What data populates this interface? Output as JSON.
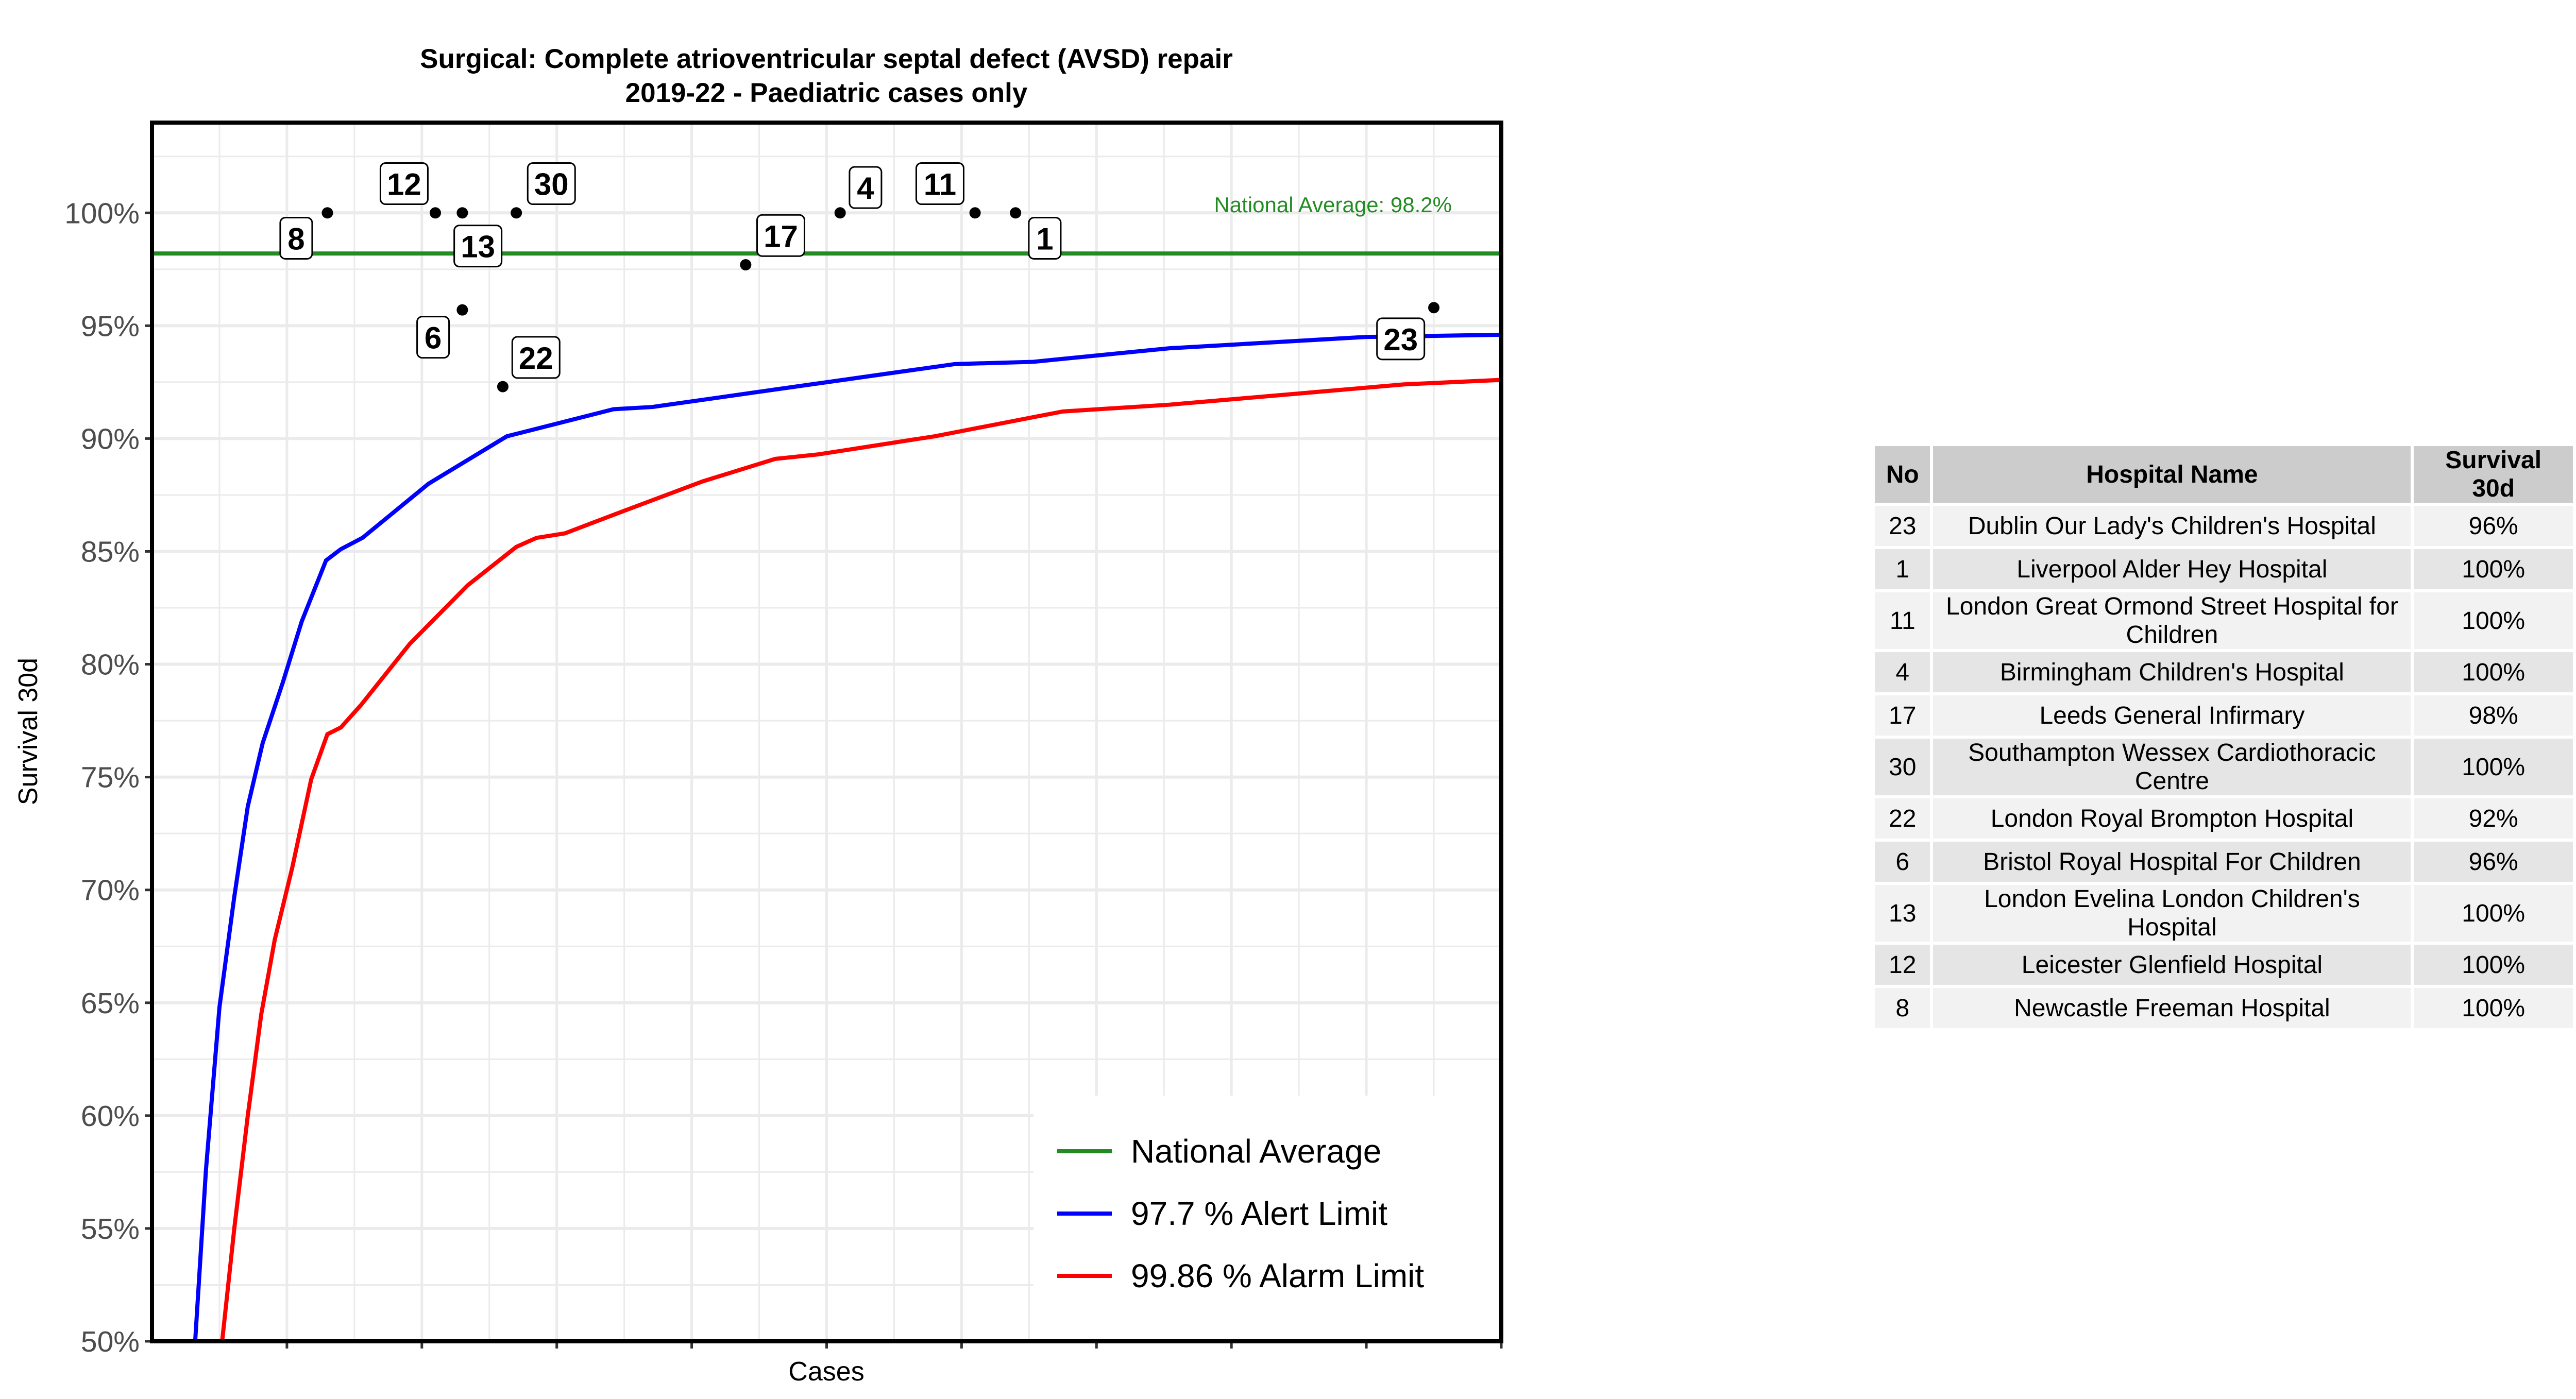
{
  "chart_data": {
    "type": "scatter",
    "title": "Surgical: Complete atrioventricular septal defect (AVSD) repair",
    "subtitle": "2019-22 - Paediatric cases only",
    "xlabel": "Cases",
    "ylabel": "Survival 30d",
    "xlim": [
      0,
      100
    ],
    "ylim": [
      50,
      104
    ],
    "x_tick_labels_shown": false,
    "y_ticks": [
      50,
      55,
      60,
      65,
      70,
      75,
      80,
      85,
      90,
      95,
      100
    ],
    "y_tick_labels": [
      "50%",
      "55%",
      "60%",
      "65%",
      "70%",
      "75%",
      "80%",
      "85%",
      "90%",
      "95%",
      "100%"
    ],
    "grid": true,
    "points": [
      {
        "label": "8",
        "x": 13,
        "y": 100
      },
      {
        "label": "12",
        "x": 21,
        "y": 100
      },
      {
        "label": "13",
        "x": 23,
        "y": 100
      },
      {
        "label": "30",
        "x": 27,
        "y": 100
      },
      {
        "label": "6",
        "x": 23,
        "y": 95.7
      },
      {
        "label": "22",
        "x": 26,
        "y": 92.3
      },
      {
        "label": "17",
        "x": 44,
        "y": 97.7
      },
      {
        "label": "4",
        "x": 51,
        "y": 100
      },
      {
        "label": "11",
        "x": 61,
        "y": 100
      },
      {
        "label": "1",
        "x": 64,
        "y": 100
      },
      {
        "label": "23",
        "x": 95,
        "y": 95.8
      }
    ],
    "national_average": {
      "value": 98.2,
      "label": "National Average: 98.2%",
      "color": "#228B22"
    },
    "series": [
      {
        "name": "97.7 %  Alert Limit",
        "color": "#0000FF",
        "x": [
          3.2,
          4,
          5,
          6.1,
          7.1,
          8.2,
          9.7,
          11.1,
          12.9,
          14,
          15.6,
          20.5,
          26.3,
          34.2,
          37.1,
          46.5,
          59.5,
          65.3,
          75.4,
          89.9,
          100
        ],
        "y": [
          50,
          57.6,
          64.8,
          69.7,
          73.7,
          76.5,
          79.2,
          81.9,
          84.6,
          85.1,
          85.6,
          88,
          90.1,
          91.3,
          91.4,
          92.2,
          93.3,
          93.4,
          94,
          94.5,
          94.6
        ]
      },
      {
        "name": "99.86 %  Alarm Limit",
        "color": "#FF0000",
        "x": [
          5.2,
          6.1,
          7.1,
          8.1,
          9.1,
          10.4,
          11.8,
          13,
          14,
          15.5,
          19.1,
          23.4,
          27,
          28.5,
          30.6,
          35,
          40.8,
          46.2,
          49.4,
          58,
          67.5,
          75.4,
          92.8,
          100
        ],
        "y": [
          50,
          55,
          60,
          64.5,
          67.8,
          71,
          74.9,
          76.9,
          77.2,
          78.2,
          80.9,
          83.5,
          85.2,
          85.6,
          85.8,
          86.8,
          88.1,
          89.1,
          89.3,
          90.1,
          91.2,
          91.5,
          92.4,
          92.6
        ]
      }
    ],
    "legend": {
      "placement": "bottom-right",
      "entries": [
        {
          "name": "National Average",
          "color": "#228B22"
        },
        {
          "name": "97.7 %  Alert Limit",
          "color": "#0000FF"
        },
        {
          "name": "99.86 %  Alarm Limit",
          "color": "#FF0000"
        }
      ]
    }
  },
  "table": {
    "headers": [
      "No",
      "Hospital Name",
      "Survival 30d"
    ],
    "rows": [
      [
        "23",
        "Dublin Our Lady's Children's Hospital",
        "96%"
      ],
      [
        "1",
        "Liverpool Alder Hey Hospital",
        "100%"
      ],
      [
        "11",
        "London Great Ormond Street Hospital for Children",
        "100%"
      ],
      [
        "4",
        "Birmingham Children's Hospital",
        "100%"
      ],
      [
        "17",
        "Leeds General Infirmary",
        "98%"
      ],
      [
        "30",
        "Southampton Wessex Cardiothoracic Centre",
        "100%"
      ],
      [
        "22",
        "London Royal Brompton Hospital",
        "92%"
      ],
      [
        "6",
        "Bristol Royal Hospital For Children",
        "96%"
      ],
      [
        "13",
        "London Evelina London Children's Hospital",
        "100%"
      ],
      [
        "12",
        "Leicester Glenfield Hospital",
        "100%"
      ],
      [
        "8",
        "Newcastle Freeman Hospital",
        "100%"
      ]
    ]
  }
}
